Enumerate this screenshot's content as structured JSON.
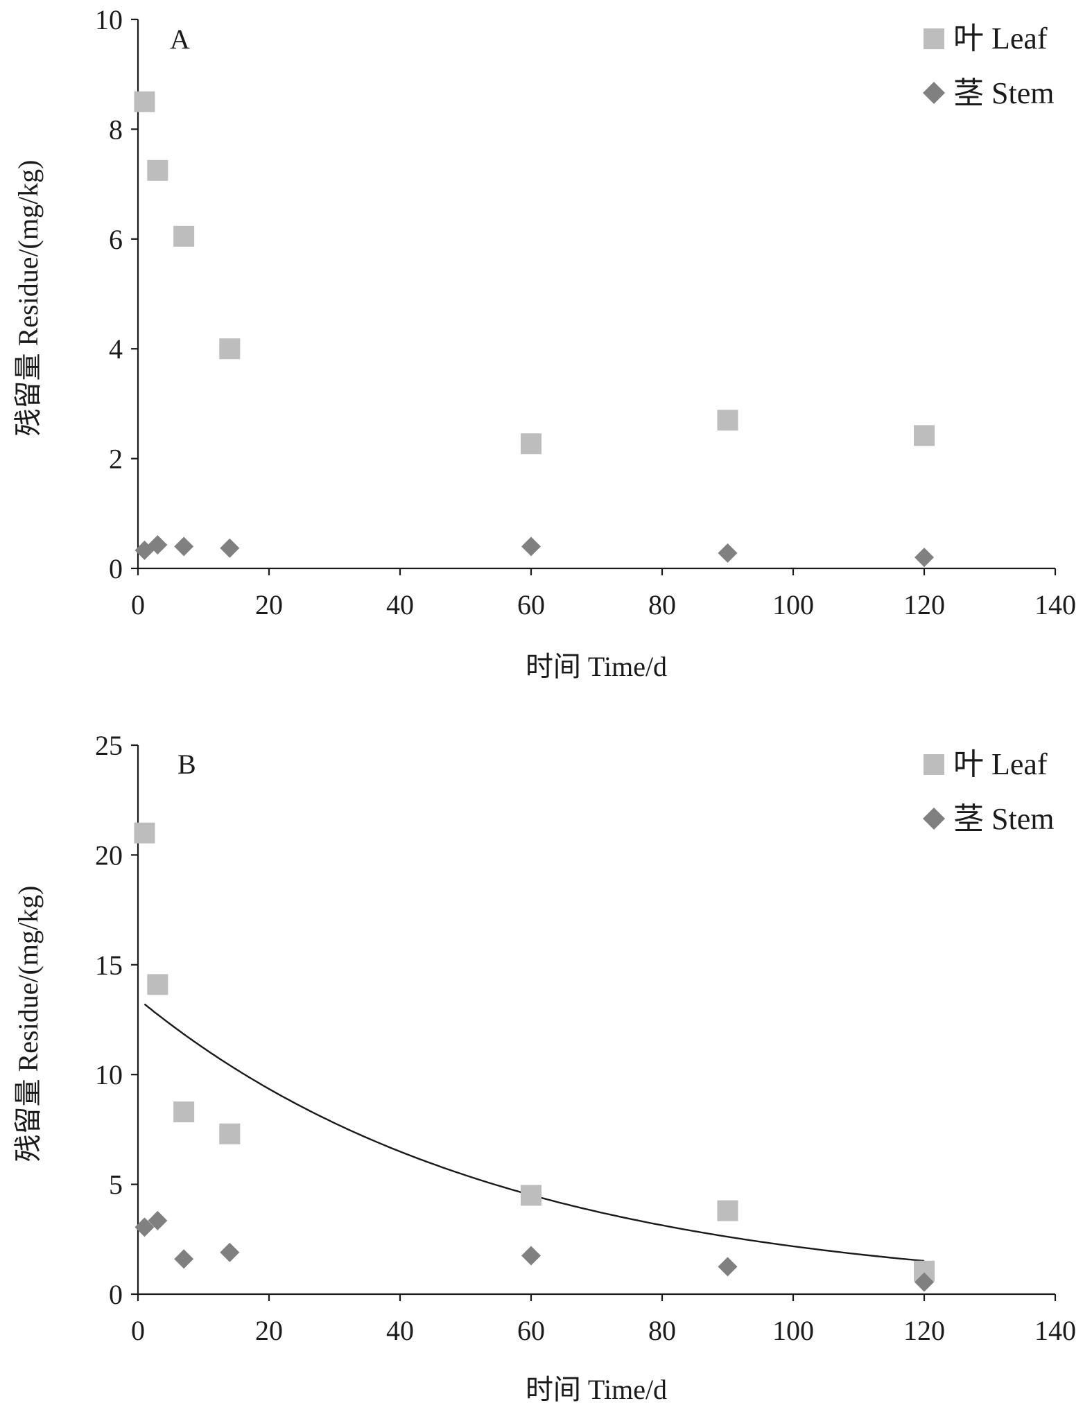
{
  "chart_data": [
    {
      "type": "scatter",
      "panel_label": "A",
      "xlabel": "时间 Time/d",
      "ylabel": "残留量 Residue/(mg/kg)",
      "xlim": [
        0,
        140
      ],
      "ylim": [
        0,
        10
      ],
      "x_ticks": [
        "0",
        "20",
        "40",
        "60",
        "80",
        "100",
        "120",
        "140"
      ],
      "y_ticks": [
        "0",
        "2",
        "4",
        "6",
        "8",
        "10"
      ],
      "legend_position": "top-right",
      "series": [
        {
          "name": "叶 Leaf",
          "marker": "square",
          "color": "#bdbdbd",
          "x": [
            1,
            3,
            7,
            14,
            60,
            90,
            120
          ],
          "values": [
            8.5,
            7.25,
            6.05,
            4.0,
            2.27,
            2.7,
            2.42
          ]
        },
        {
          "name": "茎 Stem",
          "marker": "diamond",
          "color": "#808080",
          "x": [
            1,
            3,
            7,
            14,
            60,
            90,
            120
          ],
          "values": [
            0.33,
            0.43,
            0.4,
            0.37,
            0.4,
            0.28,
            0.2
          ]
        }
      ]
    },
    {
      "type": "scatter",
      "panel_label": "B",
      "xlabel": "时间 Time/d",
      "ylabel": "残留量 Residue/(mg/kg)",
      "xlim": [
        0,
        140
      ],
      "ylim": [
        0,
        25
      ],
      "x_ticks": [
        "0",
        "20",
        "40",
        "60",
        "80",
        "100",
        "120",
        "140"
      ],
      "y_ticks": [
        "0",
        "5",
        "10",
        "15",
        "20",
        "25"
      ],
      "legend_position": "top-right",
      "series": [
        {
          "name": "叶 Leaf",
          "marker": "square",
          "color": "#bdbdbd",
          "x": [
            1,
            3,
            7,
            14,
            60,
            90,
            120
          ],
          "values": [
            21.0,
            14.1,
            8.3,
            7.3,
            4.5,
            3.8,
            1.05
          ]
        },
        {
          "name": "茎 Stem",
          "marker": "diamond",
          "color": "#808080",
          "x": [
            1,
            3,
            7,
            14,
            60,
            90,
            120
          ],
          "values": [
            3.05,
            3.35,
            1.6,
            1.9,
            1.75,
            1.25,
            0.55
          ]
        }
      ],
      "fit_curve": {
        "type": "exponential",
        "a": 13.45,
        "k": 0.0182,
        "x_range": [
          1,
          120
        ],
        "color": "#1a1a1a"
      }
    }
  ]
}
